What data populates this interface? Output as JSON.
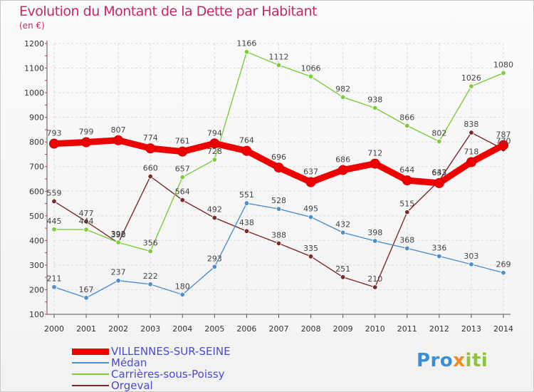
{
  "title": "Evolution du Montant de la Dette par Habitant",
  "unit": "(en €)",
  "logo": {
    "parts": [
      "Pro",
      "x",
      "iti"
    ]
  },
  "chart_data": {
    "type": "line",
    "title": "Evolution du Montant de la Dette par Habitant",
    "ylabel": "(en €)",
    "xlabel": "",
    "x": [
      "2000",
      "2001",
      "2002",
      "2003",
      "2004",
      "2005",
      "2006",
      "2007",
      "2008",
      "2009",
      "2010",
      "2011",
      "2012",
      "2013",
      "2014"
    ],
    "yticks": [
      "100",
      "200",
      "300",
      "400",
      "500",
      "600",
      "700",
      "800",
      "900",
      "1000",
      "1100",
      "1200"
    ],
    "ylim": [
      100,
      1200
    ],
    "grid": true,
    "legend_position": "bottom-left",
    "series": [
      {
        "name": "VILLENNES-SUR-SEINE",
        "color": "#ee0000",
        "values": [
          793,
          799,
          807,
          774,
          761,
          794,
          764,
          696,
          637,
          686,
          712,
          644,
          633,
          718,
          787
        ]
      },
      {
        "name": "Médan",
        "color": "#4d8fcc",
        "values": [
          211,
          167,
          237,
          222,
          180,
          293,
          551,
          528,
          495,
          432,
          398,
          368,
          336,
          303,
          269
        ]
      },
      {
        "name": "Carrières-sous-Poissy",
        "color": "#7dcc3c",
        "values": [
          445,
          444,
          392,
          356,
          657,
          728,
          1166,
          1112,
          1066,
          982,
          938,
          866,
          802,
          1026,
          1080
        ]
      },
      {
        "name": "Orgeval",
        "color": "#7a2a2a",
        "values": [
          559,
          477,
          390,
          660,
          564,
          492,
          438,
          388,
          335,
          251,
          210,
          515,
          643,
          838,
          770
        ]
      }
    ]
  }
}
